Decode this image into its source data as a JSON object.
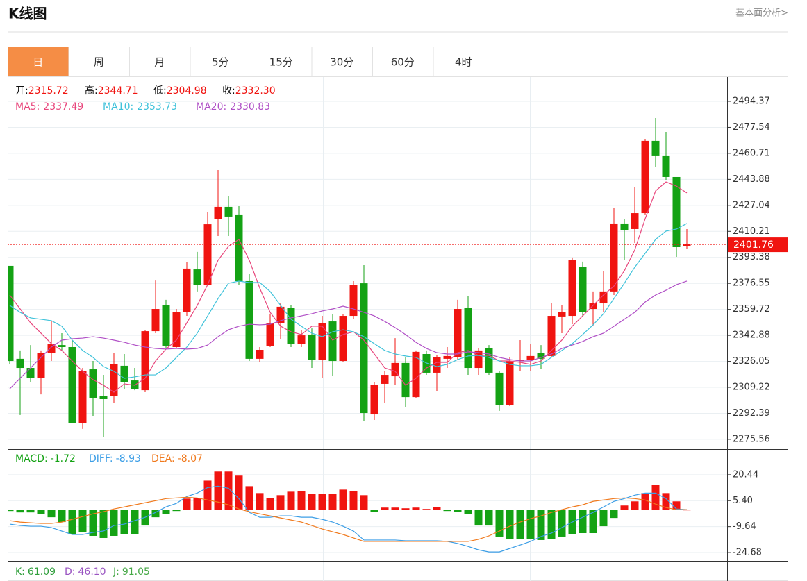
{
  "header": {
    "title": "K线图",
    "link": "基本面分析>"
  },
  "tabs": {
    "items": [
      "日",
      "周",
      "月",
      "5分",
      "15分",
      "30分",
      "60分",
      "4时"
    ],
    "active": 0,
    "active_color": "#f58d45"
  },
  "chart_data": [
    {
      "type": "candlestick",
      "info": [
        {
          "label": "开:",
          "value": "2315.72"
        },
        {
          "label": "高:",
          "value": "2344.71"
        },
        {
          "label": "低:",
          "value": "2304.98"
        },
        {
          "label": "收:",
          "value": "2332.30"
        }
      ],
      "up_color": "#f01410",
      "down_color": "#14a214",
      "open": [
        2387.9,
        2327.7,
        2321.8,
        2315.1,
        2331.7,
        2336.6,
        2335.3,
        2285.9,
        2320.9,
        2303.8,
        2303.8,
        2323.2,
        2313.7,
        2307.4,
        2345.6,
        2362.3,
        2335.3,
        2357.8,
        2385.6,
        2375.7,
        2418.4,
        2426.1,
        2420.7,
        2378.0,
        2327.7,
        2336.2,
        2351.0,
        2360.9,
        2337.5,
        2343.4,
        2326.8,
        2351.9,
        2326.3,
        2355.5,
        2376.6,
        2291.7,
        2311.5,
        2316.4,
        2325.0,
        2302.9,
        2330.8,
        2318.7,
        2327.7,
        2328.6,
        2360.9,
        2321.8,
        2334.4,
        2318.7,
        2298.0,
        2326.3,
        2327.2,
        2331.7,
        2329.5,
        2355.1,
        2355.5,
        2387.0,
        2360.0,
        2363.6,
        2371.3,
        2415.3,
        2411.7,
        2422.0,
        2468.8,
        2458.9,
        2445.4,
        2400.5
      ],
      "high": [
        2387.9,
        2333.1,
        2336.6,
        2333.1,
        2352.4,
        2344.3,
        2339.8,
        2321.8,
        2326.3,
        2317.3,
        2331.7,
        2330.8,
        2321.8,
        2346.5,
        2378.4,
        2365.9,
        2360.0,
        2390.1,
        2396.9,
        2422.9,
        2449.9,
        2432.8,
        2426.5,
        2382.5,
        2335.3,
        2356.9,
        2363.6,
        2362.3,
        2346.5,
        2347.4,
        2355.5,
        2356.4,
        2356.4,
        2378.0,
        2388.3,
        2312.8,
        2319.6,
        2341.1,
        2328.6,
        2333.1,
        2333.1,
        2329.9,
        2335.3,
        2365.9,
        2368.1,
        2334.4,
        2336.6,
        2319.6,
        2328.6,
        2339.8,
        2337.5,
        2336.6,
        2364.0,
        2362.3,
        2393.3,
        2390.6,
        2371.3,
        2384.7,
        2425.2,
        2418.4,
        2438.7,
        2470.1,
        2483.6,
        2474.6,
        2445.4,
        2411.7
      ],
      "low": [
        2324.1,
        2291.3,
        2312.8,
        2304.7,
        2326.3,
        2333.1,
        2285.9,
        2282.3,
        2290.4,
        2276.9,
        2299.3,
        2308.3,
        2307.4,
        2306.1,
        2344.3,
        2334.4,
        2334.4,
        2355.5,
        2371.3,
        2375.7,
        2407.2,
        2407.2,
        2375.7,
        2326.3,
        2325.4,
        2335.3,
        2340.7,
        2335.3,
        2335.3,
        2321.8,
        2315.1,
        2316.4,
        2325.4,
        2353.3,
        2287.2,
        2288.1,
        2299.3,
        2310.6,
        2296.2,
        2302.5,
        2317.3,
        2307.0,
        2321.8,
        2327.2,
        2317.3,
        2317.3,
        2317.3,
        2294.0,
        2297.1,
        2319.6,
        2319.6,
        2320.9,
        2328.6,
        2344.3,
        2350.1,
        2355.5,
        2348.8,
        2357.8,
        2369.0,
        2391.5,
        2402.7,
        2420.7,
        2452.1,
        2443.2,
        2393.7,
        2399.1
      ],
      "close": [
        2326.3,
        2321.8,
        2315.1,
        2331.7,
        2337.5,
        2335.3,
        2285.9,
        2319.6,
        2302.5,
        2301.6,
        2324.1,
        2312.8,
        2308.3,
        2345.6,
        2360.0,
        2336.2,
        2357.8,
        2386.1,
        2375.7,
        2414.8,
        2426.1,
        2419.8,
        2378.0,
        2327.7,
        2333.5,
        2351.0,
        2361.4,
        2337.5,
        2342.9,
        2326.8,
        2351.0,
        2326.3,
        2355.5,
        2375.7,
        2292.6,
        2310.6,
        2317.3,
        2325.0,
        2302.9,
        2332.2,
        2318.7,
        2328.6,
        2329.5,
        2360.0,
        2321.8,
        2333.1,
        2318.7,
        2298.0,
        2326.3,
        2327.2,
        2329.5,
        2327.7,
        2355.5,
        2357.8,
        2391.5,
        2357.8,
        2363.6,
        2371.3,
        2415.3,
        2410.8,
        2422.0,
        2468.8,
        2458.9,
        2445.4,
        2400.0,
        2401.76
      ],
      "series": [
        {
          "name": "MA5:",
          "legend_value": "2337.49",
          "color": "#e8467c",
          "values": [
            2369.0,
            2360.0,
            2351.0,
            2344.3,
            2337.5,
            2333.1,
            2326.3,
            2319.6,
            2314.2,
            2310.6,
            2306.1,
            2311.5,
            2310.6,
            2315.1,
            2326.3,
            2334.0,
            2339.8,
            2351.0,
            2362.3,
            2375.7,
            2391.5,
            2400.5,
            2405.0,
            2391.5,
            2373.5,
            2357.8,
            2348.8,
            2345.2,
            2343.4,
            2348.8,
            2348.8,
            2339.8,
            2343.4,
            2345.2,
            2339.8,
            2330.8,
            2321.8,
            2319.6,
            2310.6,
            2315.1,
            2321.8,
            2325.4,
            2325.4,
            2331.7,
            2333.1,
            2329.9,
            2329.9,
            2326.3,
            2326.3,
            2325.4,
            2324.1,
            2326.3,
            2333.1,
            2339.8,
            2348.8,
            2355.5,
            2362.3,
            2369.0,
            2374.8,
            2384.7,
            2398.2,
            2418.4,
            2436.4,
            2442.2,
            2439.5,
            2435.1
          ]
        },
        {
          "name": "MA10:",
          "legend_value": "2353.73",
          "color": "#3fc2da",
          "values": [
            2362.3,
            2357.8,
            2354.2,
            2353.3,
            2352.4,
            2348.8,
            2339.8,
            2333.1,
            2328.6,
            2322.7,
            2319.6,
            2315.1,
            2316.0,
            2317.3,
            2317.3,
            2321.8,
            2328.6,
            2335.3,
            2344.3,
            2355.5,
            2366.7,
            2376.6,
            2378.0,
            2377.1,
            2377.1,
            2371.3,
            2362.3,
            2353.3,
            2348.8,
            2344.3,
            2342.0,
            2345.2,
            2346.5,
            2345.2,
            2342.0,
            2337.5,
            2333.1,
            2330.8,
            2329.5,
            2328.6,
            2325.0,
            2322.7,
            2324.1,
            2327.2,
            2329.5,
            2329.9,
            2328.6,
            2326.3,
            2324.1,
            2323.2,
            2323.2,
            2324.1,
            2328.6,
            2333.1,
            2337.5,
            2343.4,
            2349.7,
            2356.9,
            2366.7,
            2376.6,
            2387.0,
            2396.0,
            2405.0,
            2410.4,
            2411.7,
            2415.3
          ]
        },
        {
          "name": "MA20:",
          "legend_value": "2330.83",
          "color": "#b04fc6",
          "values": [
            2308.3,
            2315.1,
            2321.8,
            2328.6,
            2335.3,
            2339.8,
            2340.7,
            2341.1,
            2342.0,
            2341.1,
            2339.8,
            2338.4,
            2336.6,
            2335.3,
            2334.4,
            2334.0,
            2334.4,
            2334.0,
            2334.4,
            2336.6,
            2342.0,
            2346.5,
            2348.8,
            2350.1,
            2349.7,
            2350.1,
            2352.4,
            2354.2,
            2355.5,
            2356.9,
            2358.7,
            2360.0,
            2361.8,
            2360.0,
            2357.8,
            2355.5,
            2351.9,
            2347.9,
            2343.4,
            2338.4,
            2334.4,
            2331.7,
            2330.8,
            2330.8,
            2332.2,
            2331.7,
            2330.8,
            2328.6,
            2327.2,
            2326.3,
            2326.3,
            2328.6,
            2330.8,
            2334.4,
            2336.6,
            2338.9,
            2342.0,
            2344.3,
            2348.8,
            2353.3,
            2357.8,
            2364.5,
            2369.0,
            2372.1,
            2375.7,
            2378.0
          ]
        }
      ],
      "last_price": 2401.76,
      "last_price_color": "#f01410",
      "ylim": [
        2269.24,
        2510.1
      ],
      "yticks": [
        2494.37,
        2477.54,
        2460.71,
        2443.88,
        2427.04,
        2410.21,
        2393.38,
        2376.55,
        2359.72,
        2342.88,
        2326.05,
        2309.22,
        2292.39,
        2275.56
      ],
      "grid": true
    },
    {
      "type": "macd",
      "histogram": {
        "name": "MACD:",
        "legend_value": "-1.72",
        "up_color": "#f01410",
        "down_color": "#14a214",
        "values": [
          -0.6,
          -1.4,
          -1.4,
          -2.2,
          -4.2,
          -7.0,
          -14.2,
          -13.0,
          -15.0,
          -16.2,
          -15.0,
          -14.2,
          -14.2,
          -9.0,
          -4.2,
          -2.2,
          -0.6,
          6.6,
          7.0,
          17.0,
          22.3,
          22.3,
          19.9,
          13.8,
          9.8,
          7.0,
          8.6,
          10.6,
          11.0,
          9.4,
          9.4,
          9.4,
          11.8,
          11.0,
          8.6,
          -1.0,
          1.4,
          1.4,
          1.0,
          1.4,
          0.6,
          1.8,
          -0.6,
          -1.0,
          -2.2,
          -9.0,
          -9.0,
          -15.4,
          -17.0,
          -17.0,
          -17.0,
          -17.4,
          -17.0,
          -15.4,
          -14.2,
          -13.4,
          -13.4,
          -9.4,
          -4.6,
          2.6,
          5.0,
          9.8,
          14.6,
          9.8,
          5.0,
          0.2
        ]
      },
      "series": [
        {
          "name": "DIFF:",
          "legend_value": "-8.93",
          "color": "#3c9ee6",
          "values": [
            -8.2,
            -9.0,
            -9.4,
            -9.4,
            -10.2,
            -12.2,
            -14.2,
            -14.2,
            -13.0,
            -12.2,
            -9.0,
            -8.2,
            -6.2,
            -4.2,
            -1.4,
            1.8,
            3.8,
            7.8,
            9.8,
            13.0,
            13.8,
            12.6,
            6.6,
            -1.4,
            -4.2,
            -4.2,
            -3.4,
            -3.4,
            -4.2,
            -4.2,
            -5.4,
            -7.0,
            -9.4,
            -12.2,
            -17.4,
            -17.4,
            -17.4,
            -17.4,
            -17.8,
            -17.8,
            -17.8,
            -17.8,
            -18.2,
            -19.4,
            -21.1,
            -23.1,
            -24.3,
            -24.3,
            -22.3,
            -20.3,
            -18.2,
            -15.4,
            -13.4,
            -10.2,
            -7.0,
            -4.2,
            -1.4,
            1.8,
            5.0,
            6.6,
            8.6,
            9.8,
            9.8,
            6.6,
            0.6,
            0.2
          ]
        },
        {
          "name": "DEA:",
          "legend_value": "-8.07",
          "color": "#f07a1e",
          "values": [
            -6.2,
            -7.0,
            -7.4,
            -7.8,
            -7.8,
            -7.0,
            -5.4,
            -3.8,
            -2.2,
            -1.0,
            0.6,
            1.8,
            3.0,
            4.2,
            5.4,
            6.6,
            7.0,
            7.4,
            7.0,
            5.8,
            4.6,
            3.0,
            0.6,
            -1.0,
            -2.2,
            -3.4,
            -4.6,
            -5.8,
            -7.0,
            -9.0,
            -11.0,
            -12.6,
            -14.2,
            -16.2,
            -18.2,
            -18.2,
            -18.2,
            -18.2,
            -18.2,
            -18.2,
            -18.2,
            -18.2,
            -18.2,
            -18.2,
            -18.2,
            -17.0,
            -15.0,
            -12.2,
            -9.4,
            -7.0,
            -5.0,
            -3.4,
            -1.4,
            0.2,
            1.8,
            3.0,
            5.0,
            5.8,
            6.6,
            7.0,
            6.6,
            5.8,
            3.4,
            1.4,
            0.2,
            0.2
          ]
        }
      ],
      "ylim": [
        -29.49,
        34.88
      ],
      "yticks": [
        20.44,
        {
          "value": 5.4,
          "label": "5.40"
        },
        -9.64,
        -24.68
      ],
      "grid": true
    }
  ],
  "kdj": [
    {
      "name": "K:",
      "value": "61.09",
      "color": "#2e9e3a"
    },
    {
      "name": "D:",
      "value": "46.10",
      "color": "#9a55c2"
    },
    {
      "name": "J:",
      "value": "91.05",
      "color": "#45a845"
    }
  ]
}
